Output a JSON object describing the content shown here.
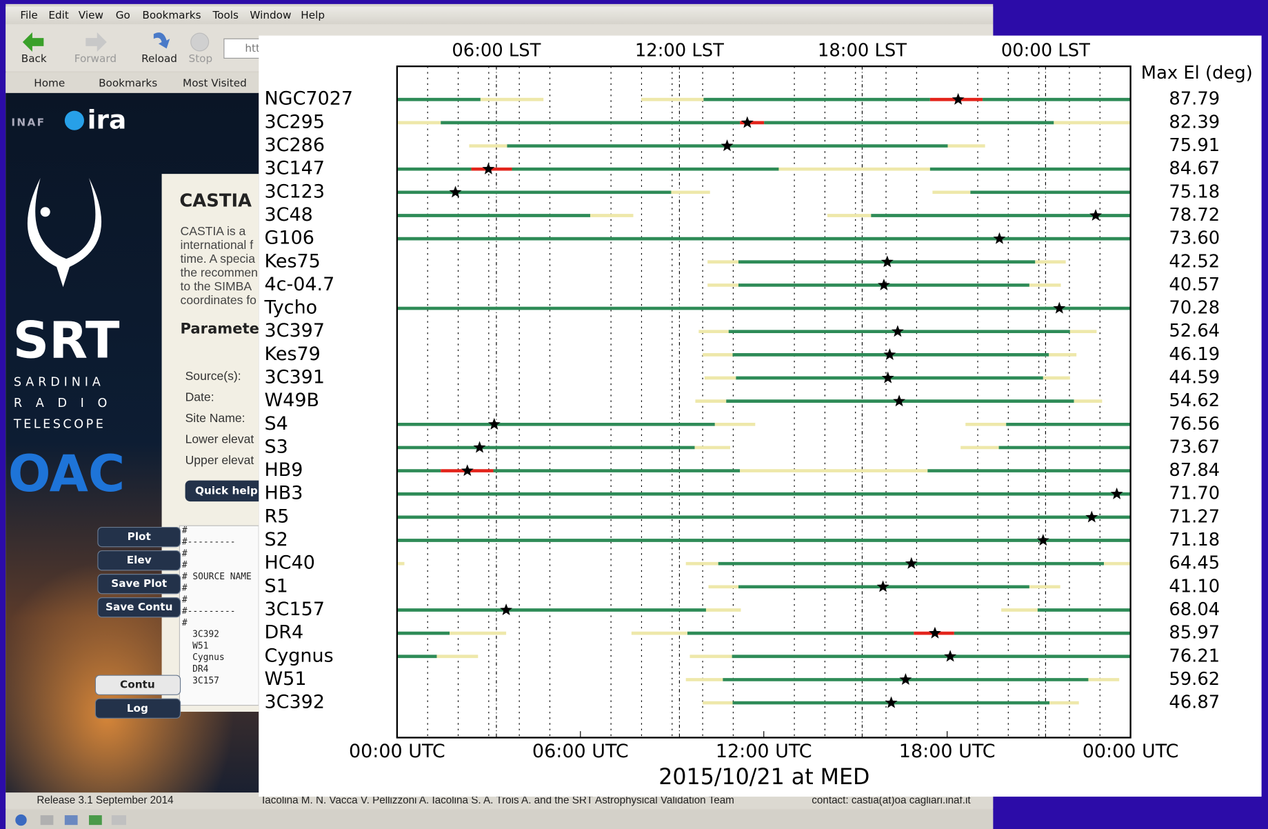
{
  "browser": {
    "menu": [
      "File",
      "Edit",
      "View",
      "Go",
      "Bookmarks",
      "Tools",
      "Window",
      "Help"
    ],
    "toolbar": [
      "Back",
      "Forward",
      "Reload",
      "Stop"
    ],
    "url": "htt",
    "bookmarks": [
      "Home",
      "Bookmarks",
      "Most Visited"
    ]
  },
  "sidebar": {
    "inaf": "INAF",
    "ira": "ira",
    "srt": "SRT",
    "subtitle": [
      "SARDINIA",
      "R A D I O",
      "TELESCOPE"
    ],
    "oac": "OAC",
    "buttons": [
      "Plot",
      "Elev",
      "Save Plot",
      "Save Contu"
    ],
    "buttons2": [
      "Contu",
      "Log"
    ]
  },
  "panel": {
    "title": "CASTIA",
    "text": [
      "CASTIA is a",
      "international f",
      "time. A specia",
      "the recommen",
      "to the SIMBA",
      "coordinates fo"
    ],
    "params_heading": "Parameter",
    "fields": [
      "Source(s):",
      "Date:",
      "Site Name:",
      "Lower elevat",
      "Upper elevat"
    ],
    "help": "Quick help",
    "console": [
      "#",
      "#---------",
      "#",
      "#",
      "# SOURCE NAME",
      "#",
      "#",
      "#---------",
      "#",
      "3C392",
      "W51",
      "Cygnus",
      "DR4",
      "3C157"
    ]
  },
  "footer": {
    "release": "Release 3.1 September 2014",
    "authors": "Iacolina M. N.   Vacca V.   Pellizzoni A.   Iacolina S. A.   Trois A. and the SRT Astrophysical Validation Team",
    "contact": "contact: castia(at)oa cagliari.inaf.it"
  },
  "chart_data": {
    "type": "timeline",
    "xlabel": "2015/10/21 at MED",
    "right_title": "Max El (deg)",
    "xlim": [
      0,
      24
    ],
    "xticks": [
      {
        "value": 0,
        "label": "00:00 UTC"
      },
      {
        "value": 6,
        "label": "06:00 UTC"
      },
      {
        "value": 12,
        "label": "12:00 UTC"
      },
      {
        "value": 18,
        "label": "18:00 UTC"
      },
      {
        "value": 24,
        "label": "00:00 UTC"
      }
    ],
    "top_ticks": [
      {
        "value": 3.25,
        "label": "06:00 LST"
      },
      {
        "value": 9.24,
        "label": "12:00 LST"
      },
      {
        "value": 15.22,
        "label": "18:00 LST"
      },
      {
        "value": 21.22,
        "label": "00:00 LST"
      }
    ],
    "x_minor_ticks": [
      1,
      2,
      3,
      4,
      5,
      7,
      8,
      9,
      10,
      11,
      13,
      14,
      15,
      16,
      17,
      19,
      20,
      21,
      22,
      23
    ],
    "star_color": "#000000",
    "sources": [
      {
        "name": "NGC7027",
        "max_el": "87.79",
        "transit": 18.36,
        "segments": [
          [
            0,
            2.73,
            "#2e8b57"
          ],
          [
            2.73,
            4.79,
            "#eee8aa"
          ],
          [
            7.99,
            10.03,
            "#eee8aa"
          ],
          [
            10.03,
            17.44,
            "#2e8b57"
          ],
          [
            17.44,
            19.16,
            "#e3241b"
          ],
          [
            19.16,
            24,
            "#2e8b57"
          ]
        ]
      },
      {
        "name": "3C295",
        "max_el": "82.39",
        "transit": 11.46,
        "segments": [
          [
            0,
            1.43,
            "#eee8aa"
          ],
          [
            1.43,
            11.22,
            "#2e8b57"
          ],
          [
            11.22,
            12.01,
            "#e3241b"
          ],
          [
            12.01,
            21.49,
            "#2e8b57"
          ],
          [
            21.49,
            24,
            "#eee8aa"
          ]
        ]
      },
      {
        "name": "3C286",
        "max_el": "75.91",
        "transit": 10.8,
        "segments": [
          [
            2.36,
            3.6,
            "#eee8aa"
          ],
          [
            3.6,
            18.02,
            "#2e8b57"
          ],
          [
            18.02,
            19.24,
            "#eee8aa"
          ]
        ]
      },
      {
        "name": "3C147",
        "max_el": "84.67",
        "transit": 2.99,
        "segments": [
          [
            0,
            2.43,
            "#2e8b57"
          ],
          [
            2.43,
            3.76,
            "#e3241b"
          ],
          [
            3.76,
            12.49,
            "#2e8b57"
          ],
          [
            12.49,
            17.44,
            "#eee8aa"
          ],
          [
            17.44,
            24,
            "#2e8b57"
          ]
        ]
      },
      {
        "name": "3C123",
        "max_el": "75.18",
        "transit": 1.91,
        "segments": [
          [
            0,
            8.97,
            "#2e8b57"
          ],
          [
            8.97,
            10.24,
            "#eee8aa"
          ],
          [
            17.52,
            18.76,
            "#eee8aa"
          ],
          [
            18.76,
            24,
            "#2e8b57"
          ]
        ]
      },
      {
        "name": "3C48",
        "max_el": "78.72",
        "transit": 22.86,
        "segments": [
          [
            0,
            6.32,
            "#2e8b57"
          ],
          [
            6.32,
            7.73,
            "#eee8aa"
          ],
          [
            14.08,
            15.51,
            "#eee8aa"
          ],
          [
            15.51,
            24,
            "#2e8b57"
          ]
        ]
      },
      {
        "name": "G106",
        "max_el": "73.60",
        "transit": 19.71,
        "segments": [
          [
            0,
            24,
            "#2e8b57"
          ]
        ]
      },
      {
        "name": "Kes75",
        "max_el": "42.52",
        "transit": 16.04,
        "segments": [
          [
            10.16,
            11.17,
            "#eee8aa"
          ],
          [
            11.17,
            20.88,
            "#2e8b57"
          ],
          [
            20.88,
            21.88,
            "#eee8aa"
          ]
        ]
      },
      {
        "name": "4c-04.7",
        "max_el": "40.57",
        "transit": 15.93,
        "segments": [
          [
            10.16,
            11.17,
            "#eee8aa"
          ],
          [
            11.17,
            20.69,
            "#2e8b57"
          ],
          [
            20.69,
            21.72,
            "#eee8aa"
          ]
        ]
      },
      {
        "name": "Tycho",
        "max_el": "70.28",
        "transit": 21.67,
        "segments": [
          [
            0,
            24,
            "#2e8b57"
          ]
        ]
      },
      {
        "name": "3C397",
        "max_el": "52.64",
        "transit": 16.38,
        "segments": [
          [
            9.87,
            10.85,
            "#eee8aa"
          ],
          [
            10.85,
            22.02,
            "#2e8b57"
          ],
          [
            22.02,
            22.89,
            "#eee8aa"
          ]
        ]
      },
      {
        "name": "Kes79",
        "max_el": "46.19",
        "transit": 16.12,
        "segments": [
          [
            10,
            10.98,
            "#eee8aa"
          ],
          [
            10.98,
            21.33,
            "#2e8b57"
          ],
          [
            21.33,
            22.23,
            "#eee8aa"
          ]
        ]
      },
      {
        "name": "3C391",
        "max_el": "44.59",
        "transit": 16.06,
        "segments": [
          [
            10.06,
            11.09,
            "#eee8aa"
          ],
          [
            11.09,
            21.14,
            "#2e8b57"
          ],
          [
            21.14,
            22.02,
            "#eee8aa"
          ]
        ]
      },
      {
        "name": "W49B",
        "max_el": "54.62",
        "transit": 16.43,
        "segments": [
          [
            9.76,
            10.77,
            "#eee8aa"
          ],
          [
            10.77,
            22.15,
            "#2e8b57"
          ],
          [
            22.15,
            23.07,
            "#eee8aa"
          ]
        ]
      },
      {
        "name": "S4",
        "max_el": "76.56",
        "transit": 3.18,
        "segments": [
          [
            0,
            10.4,
            "#2e8b57"
          ],
          [
            10.4,
            11.72,
            "#eee8aa"
          ],
          [
            18.6,
            19.93,
            "#eee8aa"
          ],
          [
            19.93,
            24,
            "#2e8b57"
          ]
        ]
      },
      {
        "name": "S3",
        "max_el": "73.67",
        "transit": 2.7,
        "segments": [
          [
            0,
            9.74,
            "#2e8b57"
          ],
          [
            9.74,
            10.9,
            "#eee8aa"
          ],
          [
            18.44,
            19.69,
            "#eee8aa"
          ],
          [
            19.69,
            24,
            "#2e8b57"
          ]
        ]
      },
      {
        "name": "HB9",
        "max_el": "87.84",
        "transit": 2.3,
        "segments": [
          [
            0,
            1.43,
            "#2e8b57"
          ],
          [
            1.43,
            3.15,
            "#e3241b"
          ],
          [
            3.15,
            11.22,
            "#2e8b57"
          ],
          [
            11.22,
            17.36,
            "#eee8aa"
          ],
          [
            17.36,
            24,
            "#2e8b57"
          ]
        ]
      },
      {
        "name": "HB3",
        "max_el": "71.70",
        "transit": 23.55,
        "segments": [
          [
            0,
            24,
            "#2e8b57"
          ]
        ]
      },
      {
        "name": "R5",
        "max_el": "71.27",
        "transit": 22.73,
        "segments": [
          [
            0,
            24,
            "#2e8b57"
          ]
        ]
      },
      {
        "name": "S2",
        "max_el": "71.18",
        "transit": 21.14,
        "segments": [
          [
            0,
            24,
            "#2e8b57"
          ]
        ]
      },
      {
        "name": "HC40",
        "max_el": "64.45",
        "transit": 16.83,
        "segments": [
          [
            0,
            0.24,
            "#eee8aa"
          ],
          [
            9.45,
            10.51,
            "#eee8aa"
          ],
          [
            10.51,
            23.13,
            "#2e8b57"
          ],
          [
            23.13,
            24,
            "#eee8aa"
          ]
        ]
      },
      {
        "name": "S1",
        "max_el": "41.10",
        "transit": 15.9,
        "segments": [
          [
            10.19,
            11.17,
            "#eee8aa"
          ],
          [
            11.17,
            20.69,
            "#2e8b57"
          ],
          [
            20.69,
            21.7,
            "#eee8aa"
          ]
        ]
      },
      {
        "name": "3C157",
        "max_el": "68.04",
        "transit": 3.57,
        "segments": [
          [
            0,
            10.11,
            "#2e8b57"
          ],
          [
            10.11,
            11.25,
            "#eee8aa"
          ],
          [
            19.77,
            20.96,
            "#eee8aa"
          ],
          [
            20.96,
            24,
            "#2e8b57"
          ]
        ]
      },
      {
        "name": "DR4",
        "max_el": "85.97",
        "transit": 17.6,
        "segments": [
          [
            0,
            1.72,
            "#2e8b57"
          ],
          [
            1.72,
            3.57,
            "#eee8aa"
          ],
          [
            7.67,
            9.5,
            "#eee8aa"
          ],
          [
            9.5,
            16.91,
            "#2e8b57"
          ],
          [
            16.91,
            18.23,
            "#e3241b"
          ],
          [
            18.23,
            24,
            "#2e8b57"
          ]
        ]
      },
      {
        "name": "Cygnus",
        "max_el": "76.21",
        "transit": 18.1,
        "segments": [
          [
            0,
            1.3,
            "#2e8b57"
          ],
          [
            1.3,
            2.65,
            "#eee8aa"
          ],
          [
            9.58,
            10.96,
            "#eee8aa"
          ],
          [
            10.96,
            24,
            "#2e8b57"
          ]
        ]
      },
      {
        "name": "W51",
        "max_el": "59.62",
        "transit": 16.64,
        "segments": [
          [
            9.45,
            10.66,
            "#eee8aa"
          ],
          [
            10.66,
            22.62,
            "#2e8b57"
          ],
          [
            22.62,
            23.63,
            "#eee8aa"
          ]
        ]
      },
      {
        "name": "3C392",
        "max_el": "46.87",
        "transit": 16.17,
        "segments": [
          [
            10,
            10.98,
            "#eee8aa"
          ],
          [
            10.98,
            21.35,
            "#2e8b57"
          ],
          [
            21.35,
            22.31,
            "#eee8aa"
          ]
        ]
      }
    ]
  }
}
